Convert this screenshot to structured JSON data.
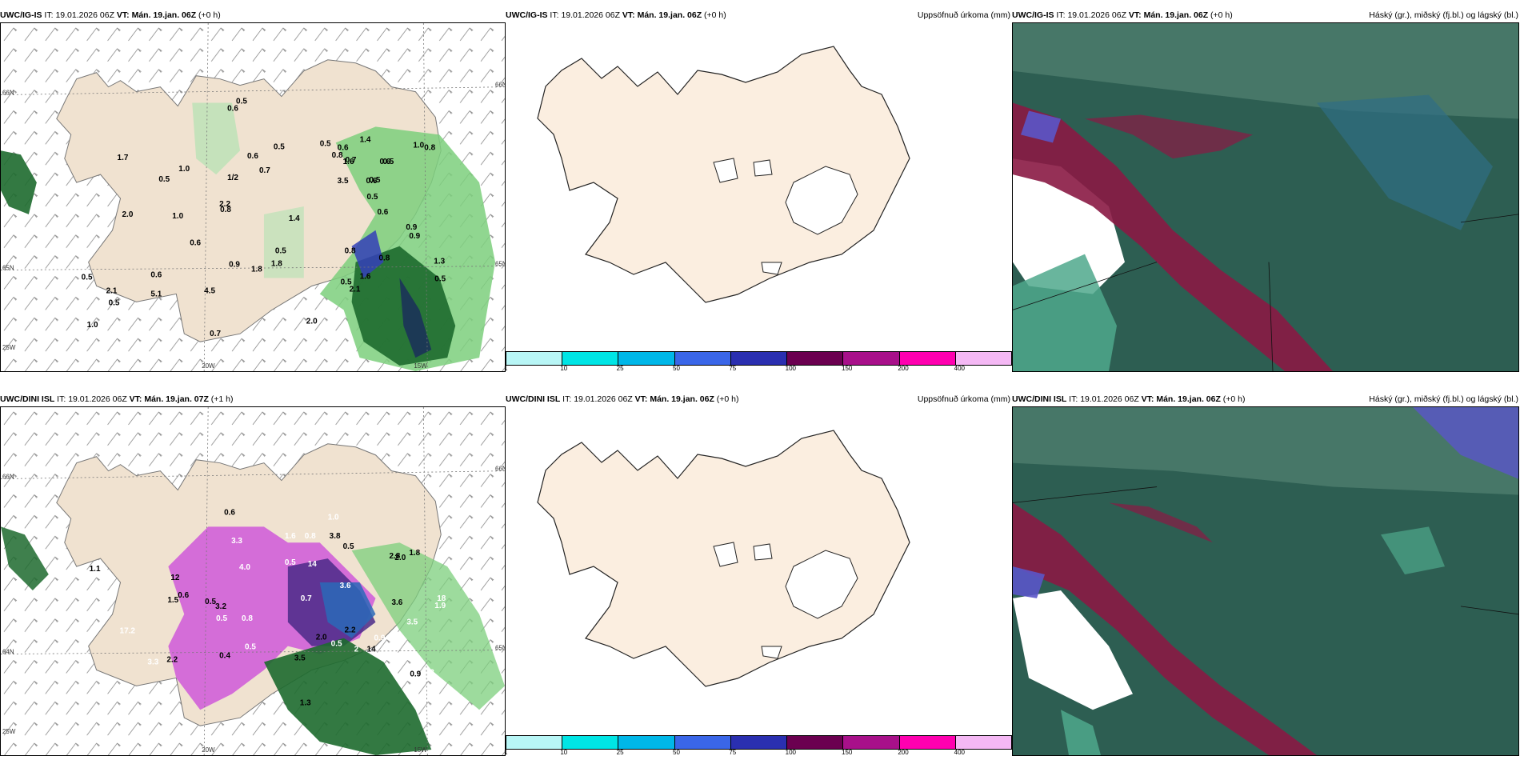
{
  "panels": [
    {
      "model": "UWC/IG-IS",
      "it_label": "IT:",
      "it": "19.01.2026 06Z",
      "vt_label": "VT:",
      "vt": "Mán. 19.jan. 06Z",
      "lead": "(+0 h)",
      "right": ""
    },
    {
      "model": "UWC/IG-IS",
      "it_label": "IT:",
      "it": "19.01.2026 06Z",
      "vt_label": "VT:",
      "vt": "Mán. 19.jan. 06Z",
      "lead": "(+0 h)",
      "right": "Uppsöfnuð úrkoma (mm)"
    },
    {
      "model": "UWC/IG-IS",
      "it_label": "IT:",
      "it": "19.01.2026 06Z",
      "vt_label": "VT:",
      "vt": "Mán. 19.jan. 06Z",
      "lead": "(+0 h)",
      "right": "Háský (gr.), miðský (fj.bl.) og lágský (bl.)"
    },
    {
      "model": "UWC/DINI ISL",
      "it_label": "IT:",
      "it": "19.01.2026 06Z",
      "vt_label": "VT:",
      "vt": "Mán. 19.jan. 07Z",
      "lead": "(+1 h)",
      "right": ""
    },
    {
      "model": "UWC/DINI ISL",
      "it_label": "IT:",
      "it": "19.01.2026 06Z",
      "vt_label": "VT:",
      "vt": "Mán. 19.jan. 06Z",
      "lead": "(+0 h)",
      "right": "Uppsöfnuð úrkoma (mm)"
    },
    {
      "model": "UWC/DINI ISL",
      "it_label": "IT:",
      "it": "19.01.2026 06Z",
      "vt_label": "VT:",
      "vt": "Mán. 19.jan. 06Z",
      "lead": "(+0 h)",
      "right": "Háský (gr.), miðský (fj.bl.) og lágský (bl.)"
    }
  ],
  "grid_labels": {
    "lat66": "66N",
    "lat64": "64N",
    "lat65": "65N",
    "lon20": "20W",
    "lon15": "15W",
    "lon25": "25W",
    "lat66r": "66N",
    "lat65r": "65N"
  },
  "legend": {
    "colors": [
      "#b8f6f6",
      "#00e5e5",
      "#00b7e8",
      "#3a66e8",
      "#2a2fb0",
      "#6b0050",
      "#a8108a",
      "#ff00b0",
      "#f4b8f4"
    ],
    "ticks": [
      "1",
      "10",
      "25",
      "50",
      "75",
      "100",
      "150",
      "200",
      "400"
    ]
  },
  "precip_top": [
    "0.5",
    "0.5",
    "0.6",
    "0.6",
    "0.5",
    "1.0",
    "0.6",
    "0.6",
    "0.5",
    "0.5",
    "0.6",
    "0.5",
    "0.5",
    "0.7",
    "0.5",
    "0.7",
    "0.6",
    "0.5",
    "0.9",
    "0.8",
    "1.0",
    "0.8",
    "1/2",
    "1.7",
    "1.0",
    "0.6",
    "2.0",
    "1.3",
    "1.4",
    "0.7",
    "0.6",
    "1.0",
    "1.8",
    "1.6",
    "1.6",
    "2.2",
    "0.5",
    "0.9",
    "0.8",
    "0.8",
    "0.5",
    "1.4",
    "0.9",
    "1.8",
    "2.1",
    "2.1",
    "5.1",
    "4.5",
    "0.8",
    "0.5",
    "2.0",
    "3.5"
  ],
  "precip_bot": [
    "2",
    "0.6",
    "0.5",
    "0.5",
    "0.5",
    "1.1",
    "2",
    "0.5",
    "0.5",
    "2.8",
    "1.6",
    "1.3",
    "0.9",
    "0.6",
    "0.8",
    "2.2",
    "0.7",
    "3.2",
    "3.6",
    "2.2",
    "1.0",
    "2.0",
    "14",
    "14",
    "18",
    "12",
    "17.2",
    "3.6",
    "4.0",
    "3.8",
    "3.5",
    "1.5",
    "3.3",
    "1.8",
    "3.3",
    "2.0",
    "1.9",
    "3.5",
    "0.8",
    "0.9",
    "0.5",
    "0.4"
  ]
}
